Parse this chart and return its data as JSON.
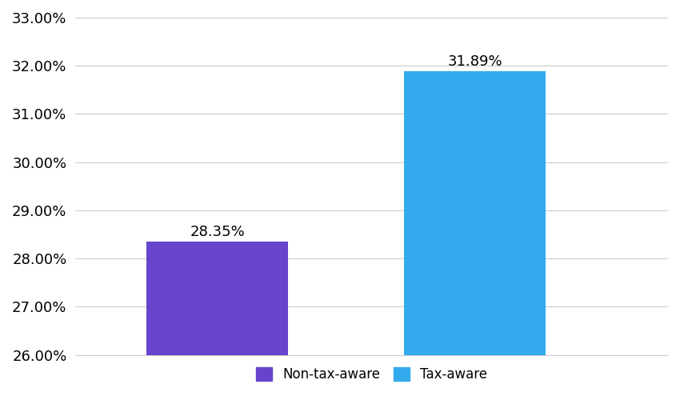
{
  "categories": [
    "Non-tax-aware",
    "Tax-aware"
  ],
  "values": [
    28.35,
    31.89
  ],
  "bar_colors": [
    "#6644cc",
    "#33aaee"
  ],
  "bar_labels": [
    "28.35%",
    "31.89%"
  ],
  "ylim_min": 26.0,
  "ylim_max": 33.0,
  "yticks": [
    26.0,
    27.0,
    28.0,
    29.0,
    30.0,
    31.0,
    32.0,
    33.0
  ],
  "background_color": "#ffffff",
  "grid_color": "#cccccc",
  "tick_fontsize": 13,
  "legend_fontsize": 12,
  "bar_label_fontsize": 13,
  "bar_width": 0.55
}
